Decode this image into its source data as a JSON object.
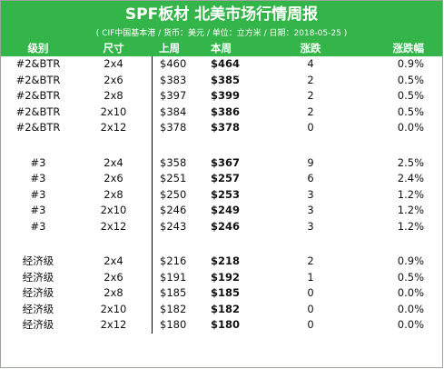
{
  "title": "SPF板材 北美市场行情周报",
  "subtitle": "( CIF中国基本港 / 货币：美元 / 单位：立方米 / 日期：2018-05-25 )",
  "columns": {
    "grade": "级别",
    "size": "尺寸",
    "last_week": "上周",
    "this_week": "本周",
    "change": "涨跌",
    "change_pct": "涨跌幅"
  },
  "groups": [
    {
      "rows": [
        {
          "grade": "#2&BTR",
          "size": "2x4",
          "last": "$460",
          "this": "$464",
          "chg": "4",
          "pct": "0.9%"
        },
        {
          "grade": "#2&BTR",
          "size": "2x6",
          "last": "$383",
          "this": "$385",
          "chg": "2",
          "pct": "0.5%"
        },
        {
          "grade": "#2&BTR",
          "size": "2x8",
          "last": "$397",
          "this": "$399",
          "chg": "2",
          "pct": "0.5%"
        },
        {
          "grade": "#2&BTR",
          "size": "2x10",
          "last": "$384",
          "this": "$386",
          "chg": "2",
          "pct": "0.5%"
        },
        {
          "grade": "#2&BTR",
          "size": "2x12",
          "last": "$378",
          "this": "$378",
          "chg": "0",
          "pct": "0.0%"
        }
      ]
    },
    {
      "rows": [
        {
          "grade": "#3",
          "size": "2x4",
          "last": "$358",
          "this": "$367",
          "chg": "9",
          "pct": "2.5%"
        },
        {
          "grade": "#3",
          "size": "2x6",
          "last": "$251",
          "this": "$257",
          "chg": "6",
          "pct": "2.4%"
        },
        {
          "grade": "#3",
          "size": "2x8",
          "last": "$250",
          "this": "$253",
          "chg": "3",
          "pct": "1.2%"
        },
        {
          "grade": "#3",
          "size": "2x10",
          "last": "$246",
          "this": "$249",
          "chg": "3",
          "pct": "1.2%"
        },
        {
          "grade": "#3",
          "size": "2x12",
          "last": "$243",
          "this": "$246",
          "chg": "3",
          "pct": "1.2%"
        }
      ]
    },
    {
      "rows": [
        {
          "grade": "经济级",
          "size": "2x4",
          "last": "$216",
          "this": "$218",
          "chg": "2",
          "pct": "0.9%"
        },
        {
          "grade": "经济级",
          "size": "2x6",
          "last": "$191",
          "this": "$192",
          "chg": "1",
          "pct": "0.5%"
        },
        {
          "grade": "经济级",
          "size": "2x8",
          "last": "$185",
          "this": "$185",
          "chg": "0",
          "pct": "0.0%"
        },
        {
          "grade": "经济级",
          "size": "2x10",
          "last": "$182",
          "this": "$182",
          "chg": "0",
          "pct": "0.0%"
        },
        {
          "grade": "经济级",
          "size": "2x12",
          "last": "$180",
          "this": "$180",
          "chg": "0",
          "pct": "0.0%"
        }
      ]
    }
  ]
}
